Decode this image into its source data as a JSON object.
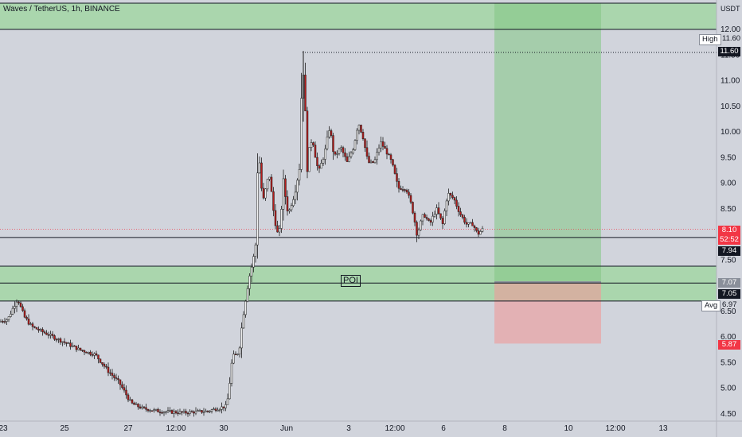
{
  "header": {
    "symbol": "Waves / TetherUS, 1h, BINANCE",
    "currency": "USDT"
  },
  "price_axis": {
    "ticks": [
      "12.00",
      "11.50",
      "11.00",
      "10.50",
      "10.00",
      "9.50",
      "9.00",
      "8.50",
      "7.50",
      "6.50",
      "6.00",
      "5.50",
      "5.00",
      "4.50"
    ],
    "tick_values": [
      12.0,
      11.5,
      11.0,
      10.5,
      10.0,
      9.5,
      9.0,
      8.5,
      7.5,
      6.5,
      6.0,
      5.5,
      5.0,
      4.5
    ]
  },
  "price_tags": {
    "high_label": "High",
    "high_value": "11.60",
    "high_line_value": "11.60",
    "last_price": "8.10",
    "countdown": "52:52",
    "level_7_94": "7.94",
    "level_7_07": "7.07",
    "level_7_05": "7.05",
    "avg_label": "Avg",
    "avg_value": "6.97",
    "stop_value": "5.87"
  },
  "time_axis": {
    "labels": [
      "23",
      "25",
      "27",
      "12:00",
      "30",
      "Jun",
      "3",
      "12:00",
      "6",
      "8",
      "10",
      "12:00",
      "13"
    ]
  },
  "annotations": {
    "poi": "POI"
  },
  "colors": {
    "background": "#d1d4dc",
    "zone_green": "#a5d6a7",
    "target_green": "#81c784",
    "stop_red": "#ef9a9a",
    "candle_up": "#26a69a",
    "candle_down": "#ef5350",
    "candle_neutral": "#1e1e1e"
  },
  "chart_data": {
    "type": "candlestick",
    "symbol": "Waves / TetherUS",
    "timeframe": "1h",
    "exchange": "BINANCE",
    "ylim": [
      4.5,
      12.4
    ],
    "price_path": [
      [
        0,
        6.3
      ],
      [
        10,
        6.35
      ],
      [
        22,
        6.75
      ],
      [
        30,
        6.4
      ],
      [
        40,
        6.2
      ],
      [
        60,
        6.05
      ],
      [
        80,
        5.9
      ],
      [
        100,
        5.75
      ],
      [
        120,
        5.65
      ],
      [
        135,
        5.35
      ],
      [
        150,
        5.1
      ],
      [
        165,
        4.7
      ],
      [
        180,
        4.6
      ],
      [
        200,
        4.55
      ],
      [
        230,
        4.52
      ],
      [
        260,
        4.55
      ],
      [
        285,
        4.65
      ],
      [
        292,
        5.6
      ],
      [
        300,
        5.7
      ],
      [
        306,
        6.5
      ],
      [
        312,
        7.1
      ],
      [
        318,
        7.5
      ],
      [
        322,
        7.9
      ],
      [
        324,
        9.8
      ],
      [
        330,
        8.6
      ],
      [
        338,
        9.2
      ],
      [
        344,
        8.4
      ],
      [
        350,
        7.9
      ],
      [
        356,
        9.0
      ],
      [
        362,
        8.4
      ],
      [
        370,
        8.8
      ],
      [
        376,
        9.3
      ],
      [
        380,
        11.55
      ],
      [
        386,
        9.4
      ],
      [
        392,
        9.9
      ],
      [
        400,
        9.2
      ],
      [
        408,
        9.6
      ],
      [
        414,
        10.1
      ],
      [
        420,
        9.5
      ],
      [
        428,
        9.7
      ],
      [
        436,
        9.4
      ],
      [
        444,
        9.7
      ],
      [
        450,
        10.2
      ],
      [
        456,
        9.9
      ],
      [
        462,
        9.4
      ],
      [
        470,
        9.4
      ],
      [
        478,
        9.8
      ],
      [
        486,
        9.6
      ],
      [
        492,
        9.4
      ],
      [
        500,
        8.9
      ],
      [
        510,
        8.9
      ],
      [
        518,
        8.5
      ],
      [
        524,
        8.0
      ],
      [
        532,
        8.4
      ],
      [
        540,
        8.2
      ],
      [
        548,
        8.5
      ],
      [
        556,
        8.2
      ],
      [
        562,
        8.8
      ],
      [
        570,
        8.7
      ],
      [
        578,
        8.4
      ],
      [
        586,
        8.2
      ],
      [
        594,
        8.2
      ],
      [
        600,
        8.0
      ],
      [
        606,
        8.1
      ]
    ],
    "horizontal_levels": [
      12.45,
      12.0,
      7.94,
      7.38,
      7.05,
      6.7
    ],
    "zones": [
      {
        "from": 12.0,
        "to": 12.45,
        "kind": "supply"
      },
      {
        "from": 7.38,
        "to": 7.05,
        "kind": "poi"
      },
      {
        "from": 7.05,
        "to": 6.7,
        "kind": "demand"
      }
    ],
    "position": {
      "entry": 7.07,
      "target": 12.45,
      "stop": 5.87
    }
  }
}
